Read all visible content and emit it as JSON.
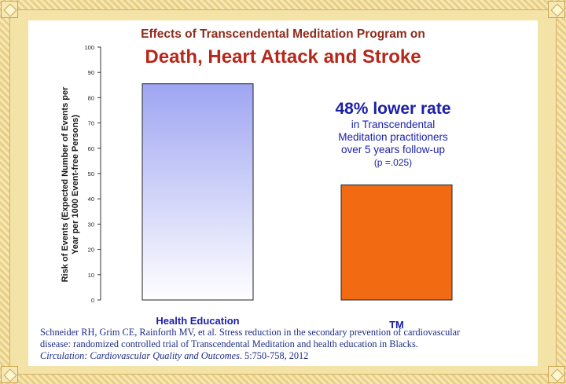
{
  "chart_data": {
    "type": "bar",
    "title": "Effects of Transcendental Meditation Program on",
    "subtitle": "Death, Heart Attack and Stroke",
    "categories": [
      "Health Education",
      "TM"
    ],
    "values": [
      85.5,
      45.5
    ],
    "ylabel_line1": "Risk of Events (Expected Number of Events per",
    "ylabel_line2": "Year per 1000 Event-free Persons)",
    "yticks": [
      0,
      10,
      20,
      30,
      40,
      50,
      60,
      70,
      80,
      90,
      100
    ],
    "ylim": [
      0,
      100
    ],
    "grid": false,
    "bar_colors": [
      "#9fa5f2",
      "#f26b12"
    ],
    "category_label_color": "#1b1ea8"
  },
  "annotation": {
    "headline": "48% lower rate",
    "line1": "in Transcendental",
    "line2": "Meditation practitioners",
    "line3": "over 5 years follow-up",
    "line4": "(p =.025)"
  },
  "reference": {
    "text1": "Schneider RH, Grim CE, Rainforth MV, et al.  Stress reduction in the secondary prevention of cardiovascular",
    "text2": "disease: randomized controlled trial of Transcendental Meditation and health education in Blacks.",
    "journal": "Circulation: Cardiovascular Quality and Outcomes",
    "details": ". 5:750-758, 2012"
  }
}
